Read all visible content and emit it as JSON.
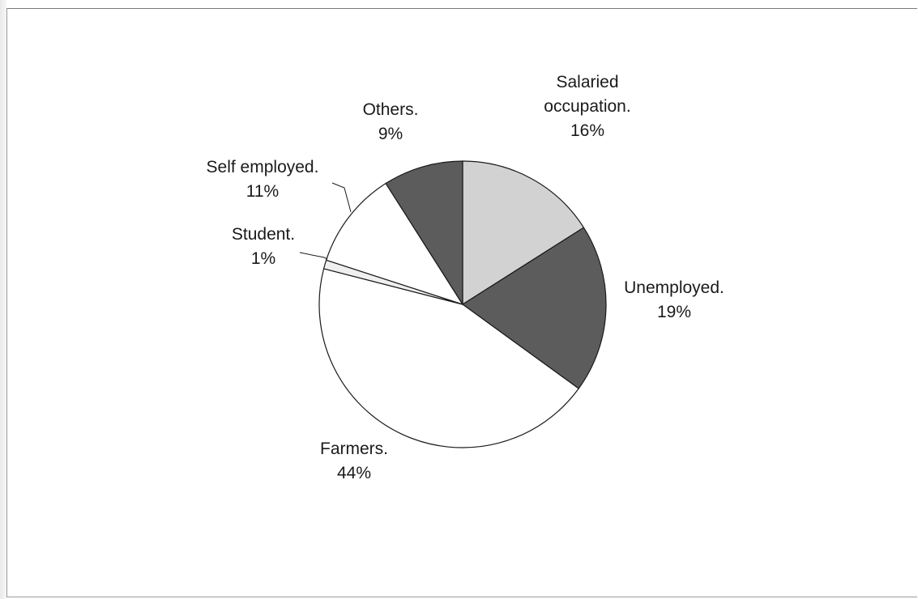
{
  "chart_data": {
    "type": "pie",
    "title": "",
    "slices": [
      {
        "label": "Salaried occupation.",
        "label_lines": [
          "Salaried",
          "occupation."
        ],
        "pct_text": "16%",
        "value": 16,
        "color": "#d2d2d2"
      },
      {
        "label": "Unemployed.",
        "label_lines": [
          "Unemployed."
        ],
        "pct_text": "19%",
        "value": 19,
        "color": "#5c5c5c"
      },
      {
        "label": "Farmers.",
        "label_lines": [
          "Farmers."
        ],
        "pct_text": "44%",
        "value": 44,
        "color": "#ffffff"
      },
      {
        "label": "Student.",
        "label_lines": [
          "Student."
        ],
        "pct_text": "1%",
        "value": 1,
        "color": "#efefef"
      },
      {
        "label": "Self employed.",
        "label_lines": [
          "Self employed."
        ],
        "pct_text": "11%",
        "value": 11,
        "color": "#ffffff"
      },
      {
        "label": "Others.",
        "label_lines": [
          "Others."
        ],
        "pct_text": "9%",
        "value": 9,
        "color": "#5c5c5c"
      }
    ],
    "start_angle_deg": 0,
    "direction": "clockwise",
    "legend": "none",
    "data_labels": "outside"
  }
}
